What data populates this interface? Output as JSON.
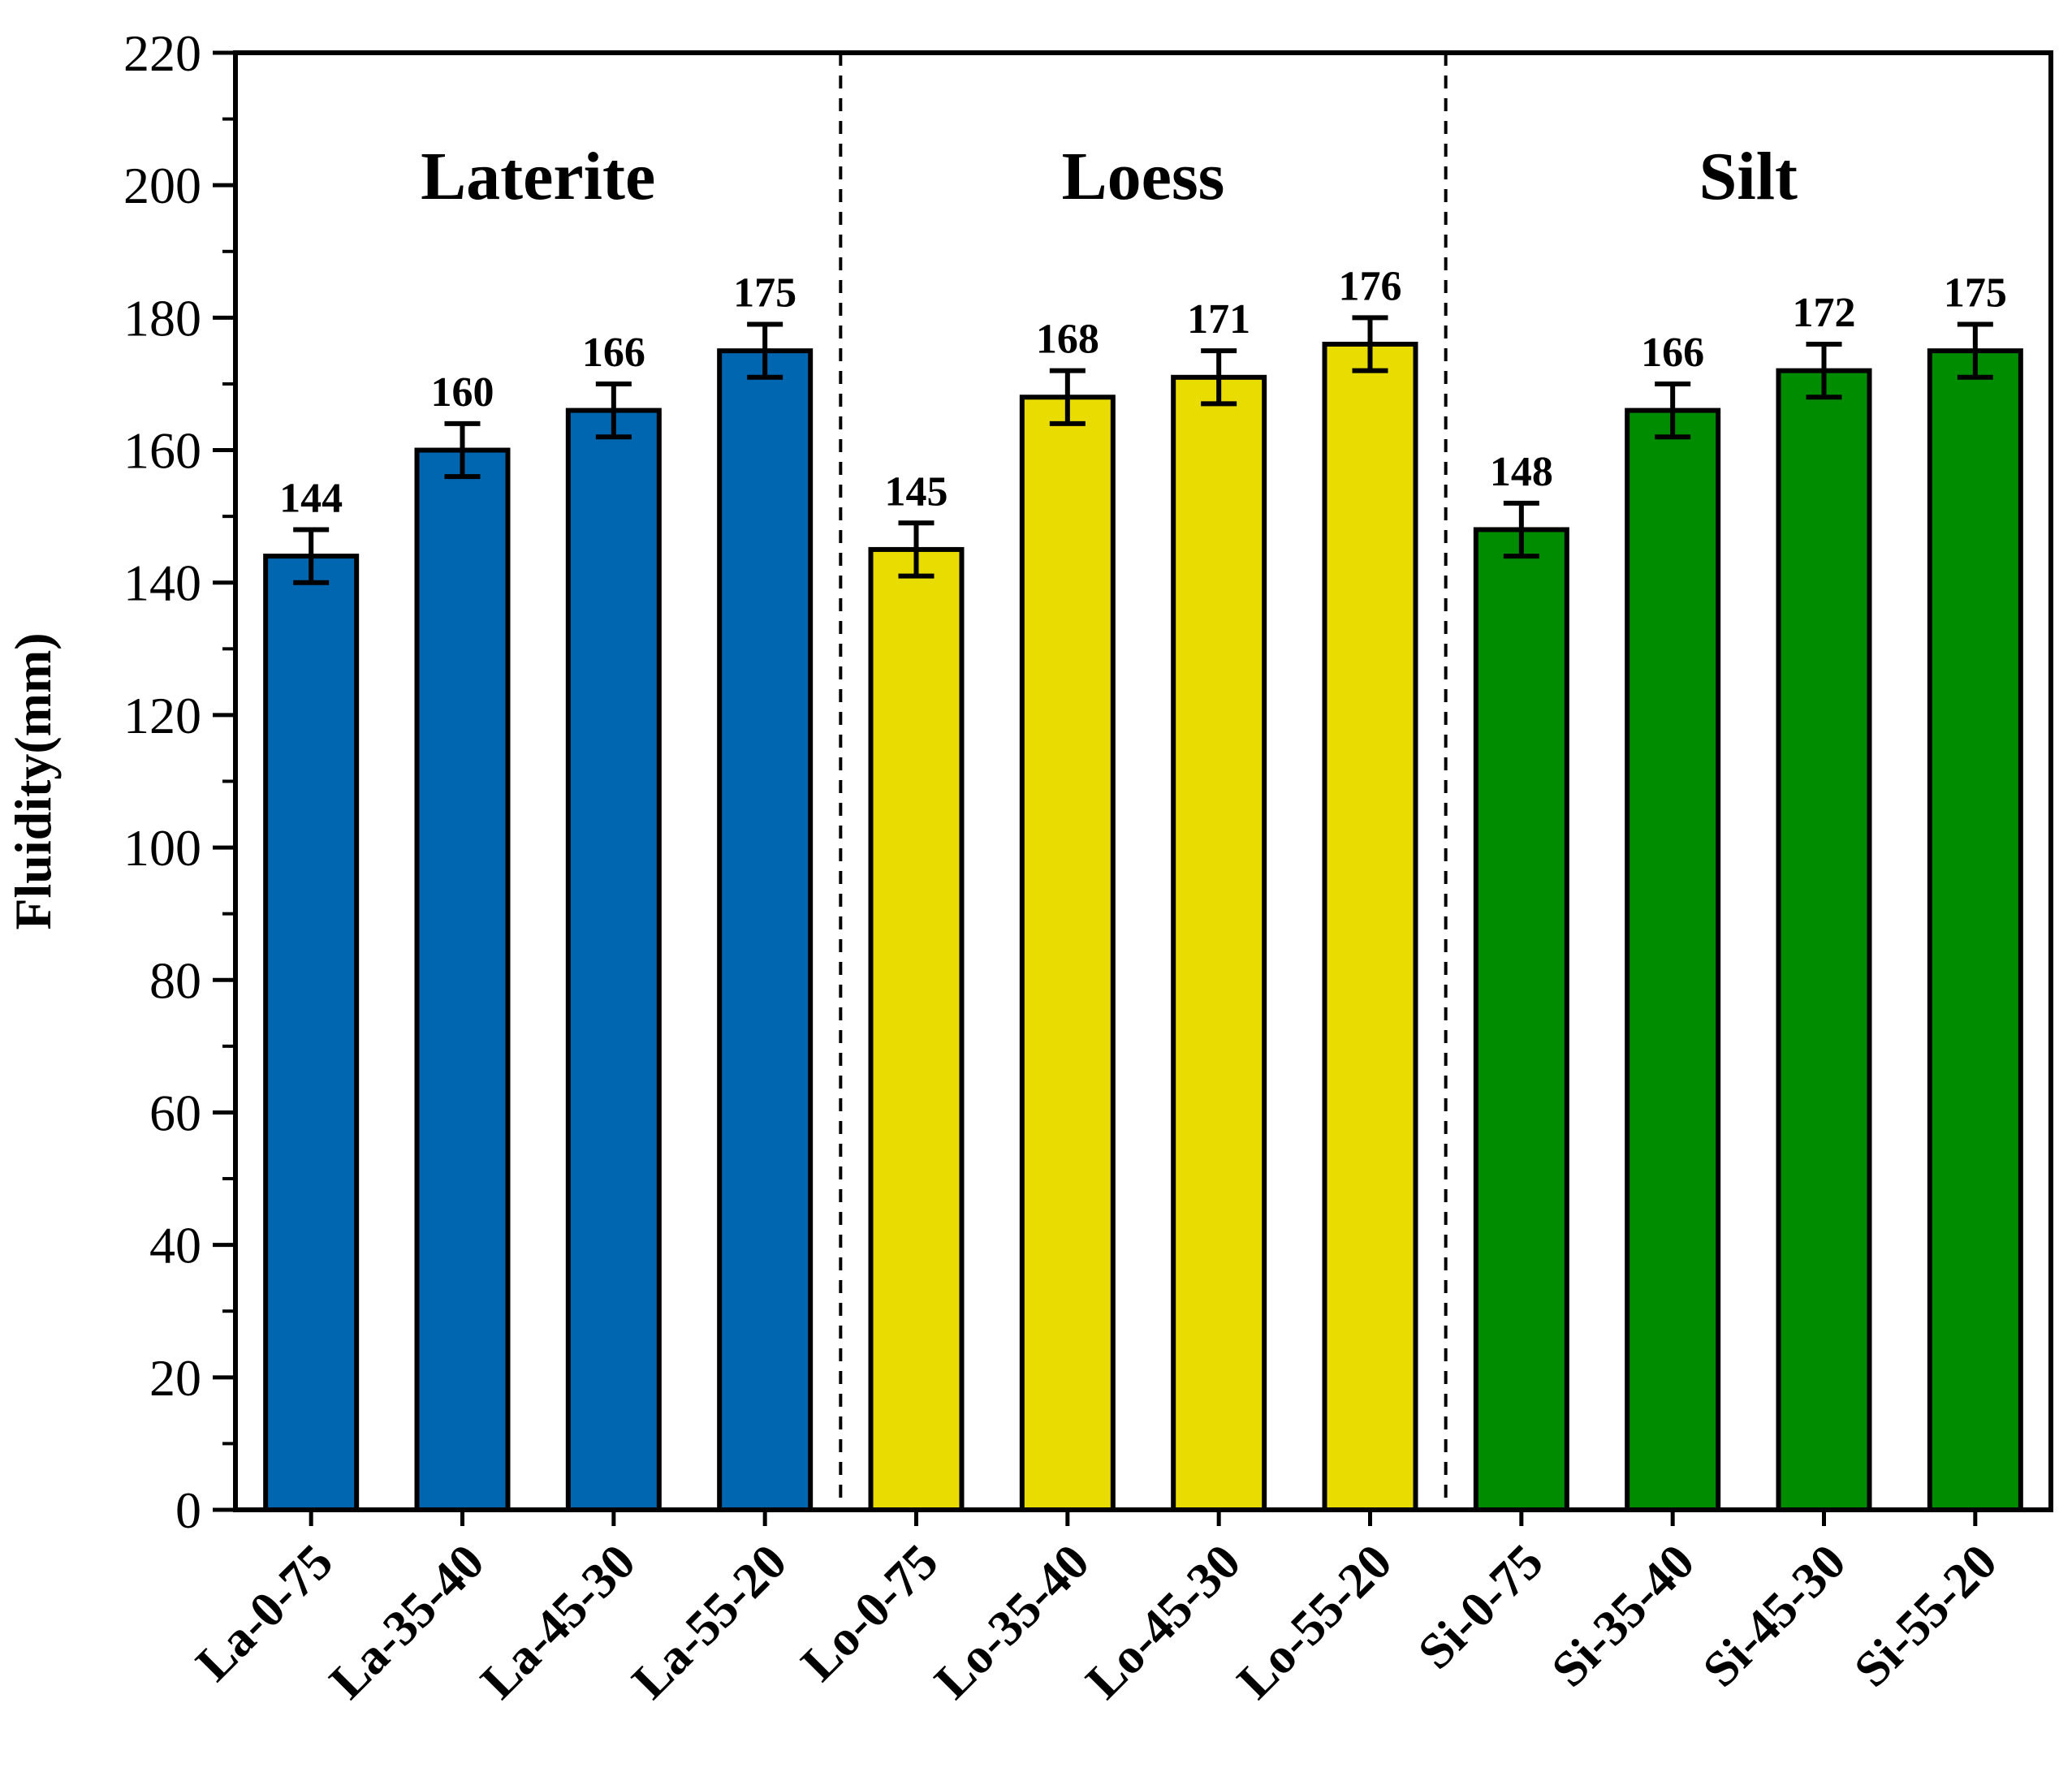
{
  "chart_data": {
    "type": "bar",
    "title": "",
    "xlabel": "",
    "ylabel": "Fluidity(mm)",
    "ylim": [
      0,
      220
    ],
    "yticks": [
      0,
      20,
      40,
      60,
      80,
      100,
      120,
      140,
      160,
      180,
      200,
      220
    ],
    "ytick_labels": [
      "0",
      "20",
      "40",
      "60",
      "80",
      "100",
      "120",
      "140",
      "160",
      "180",
      "200",
      "220"
    ],
    "grid": false,
    "categories": [
      "La-0-75",
      "La-35-40",
      "La-45-30",
      "La-55-20",
      "Lo-0-75",
      "Lo-35-40",
      "Lo-45-30",
      "Lo-55-20",
      "Si-0-75",
      "Si-35-40",
      "Si-45-30",
      "Si-55-20"
    ],
    "values": [
      144,
      160,
      166,
      175,
      145,
      168,
      171,
      176,
      148,
      166,
      172,
      175
    ],
    "errors": [
      4,
      4,
      4,
      4,
      4,
      4,
      4,
      4,
      4,
      4,
      4,
      4
    ],
    "value_labels": [
      "144",
      "160",
      "166",
      "175",
      "145",
      "168",
      "171",
      "176",
      "148",
      "166",
      "172",
      "175"
    ],
    "groups": [
      {
        "name": "Laterite",
        "color": "#0066B0",
        "start": 0,
        "end": 3
      },
      {
        "name": "Loess",
        "color": "#E8DC00",
        "start": 4,
        "end": 7
      },
      {
        "name": "Silt",
        "color": "#008C00",
        "start": 8,
        "end": 11
      }
    ]
  }
}
